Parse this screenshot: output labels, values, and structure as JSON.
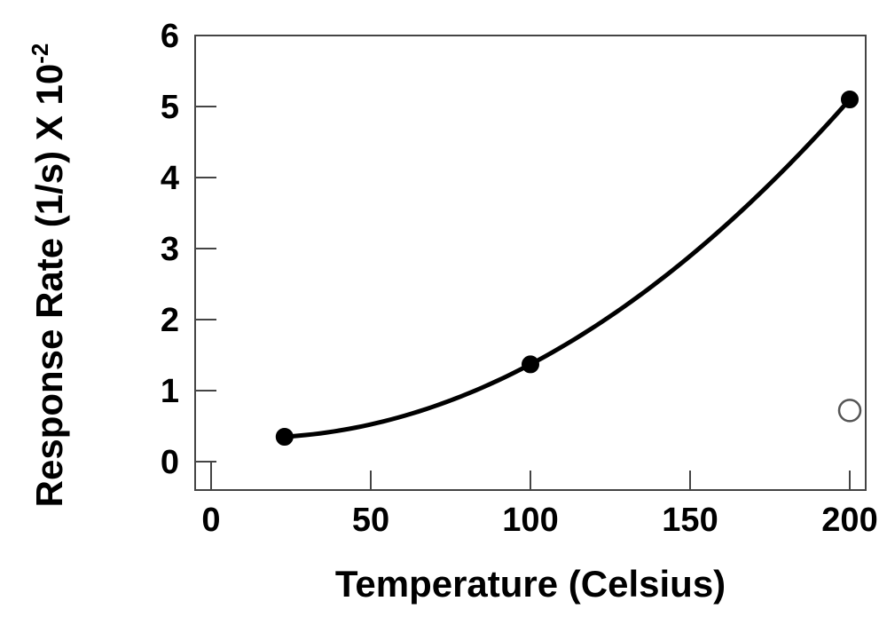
{
  "chart_data": {
    "type": "scatter",
    "xlabel": "Temperature (Celsius)",
    "ylabel": "Response Rate (1/s) X 10",
    "ylabel_exponent": "-2",
    "xlim": [
      -5,
      205
    ],
    "ylim": [
      -0.4,
      6
    ],
    "xticks": [
      0,
      50,
      100,
      150,
      200
    ],
    "yticks": [
      0,
      1,
      2,
      3,
      4,
      5,
      6
    ],
    "grid": false,
    "colors": {
      "axis": "#444444",
      "marker": "#000000",
      "curve": "#000000"
    },
    "series": [
      {
        "marker": "filled-circle",
        "x": [
          23,
          100,
          200
        ],
        "y": [
          0.35,
          1.37,
          5.1
        ],
        "fit_curve": true
      },
      {
        "marker": "open-circle",
        "x": [
          200
        ],
        "y": [
          0.72
        ],
        "fit_curve": false
      }
    ]
  }
}
